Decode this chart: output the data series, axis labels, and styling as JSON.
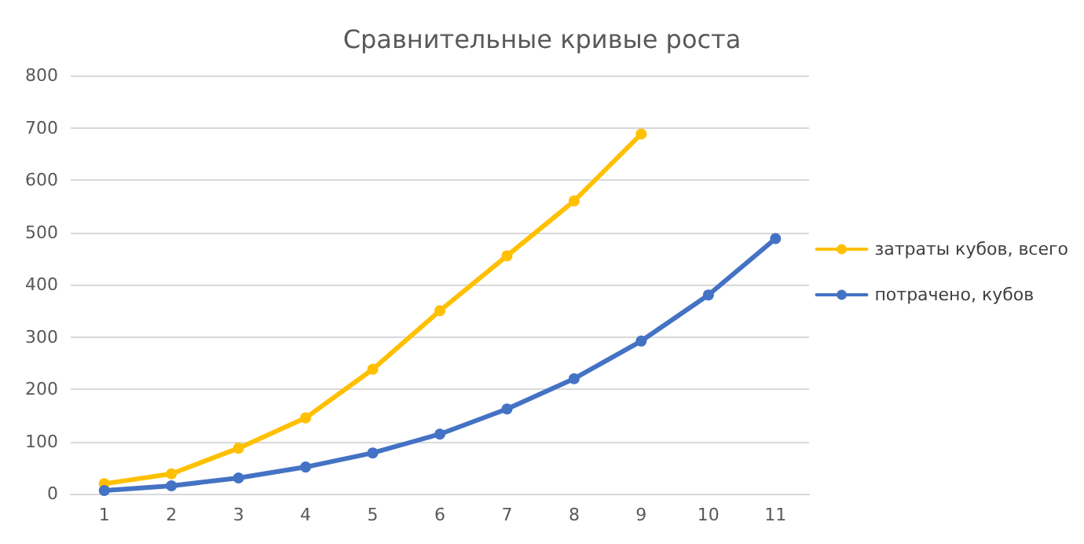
{
  "chart_data": {
    "type": "line",
    "title": "Сравнительные кривые роста",
    "categories": [
      "1",
      "2",
      "3",
      "4",
      "5",
      "6",
      "7",
      "8",
      "9",
      "10",
      "11"
    ],
    "series": [
      {
        "name": "затраты кубов, всего",
        "color": "#ffc000",
        "values": [
          19,
          38,
          87,
          145,
          238,
          350,
          455,
          560,
          688,
          null,
          null
        ]
      },
      {
        "name": "потрачено, кубов",
        "color": "#4472c4",
        "values": [
          6,
          15,
          30,
          51,
          78,
          114,
          162,
          220,
          292,
          380,
          488
        ]
      }
    ],
    "ylim": [
      0,
      800
    ],
    "yticks": [
      0,
      100,
      200,
      300,
      400,
      500,
      600,
      700,
      800
    ],
    "grid": "y",
    "legend": "right",
    "marker": "circle",
    "line_style": "solid"
  }
}
